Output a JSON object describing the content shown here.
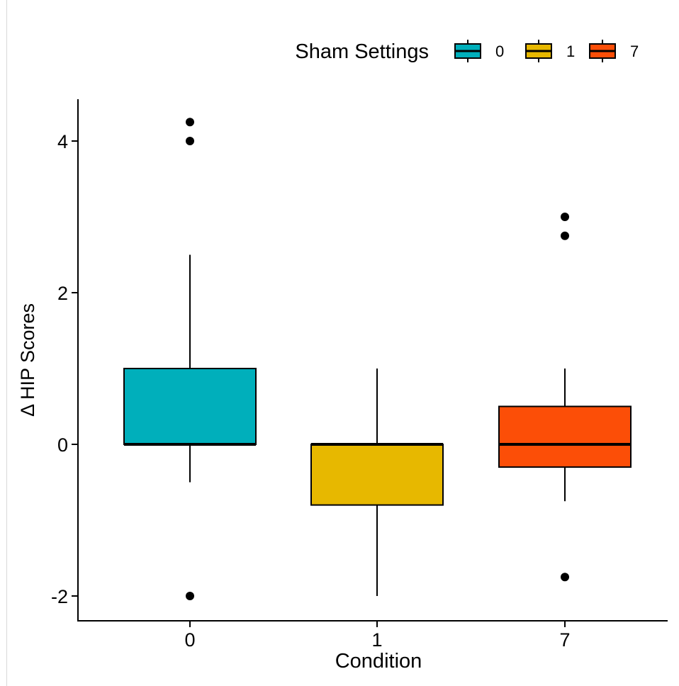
{
  "chart_data": {
    "type": "box",
    "xlabel": "Condition",
    "ylabel": "Δ HIP Scores",
    "categories": [
      "0",
      "1",
      "7"
    ],
    "y_ticks": [
      -2,
      0,
      2,
      4
    ],
    "ylim": [
      -2.25,
      4.55
    ],
    "grid": false,
    "legend": {
      "title": "Sham Settings",
      "position": "top-right",
      "entries": [
        "0",
        "1",
        "7"
      ]
    },
    "series": [
      {
        "name": "0",
        "color": "#00AFBB",
        "q1": 0,
        "median": 0,
        "q3": 1,
        "whisker_low": -0.5,
        "whisker_high": 2.5,
        "outliers": [
          4.25,
          4.0,
          -2.0
        ]
      },
      {
        "name": "1",
        "color": "#E7B800",
        "q1": -0.8,
        "median": 0,
        "q3": 0,
        "whisker_low": -2.0,
        "whisker_high": 1.0,
        "outliers": []
      },
      {
        "name": "7",
        "color": "#FC4E07",
        "q1": -0.3,
        "median": 0,
        "q3": 0.5,
        "whisker_low": -0.75,
        "whisker_high": 1.0,
        "outliers": [
          3.0,
          2.75,
          -1.75
        ]
      }
    ]
  }
}
